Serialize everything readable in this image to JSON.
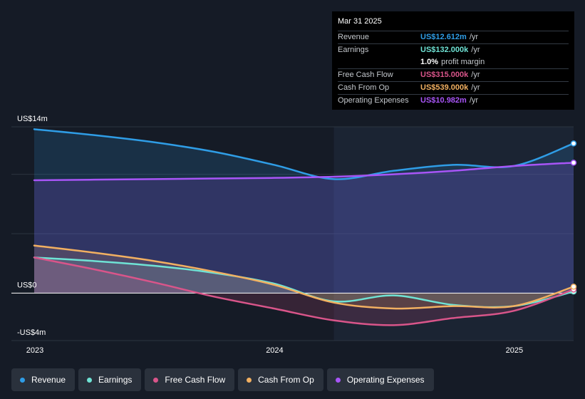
{
  "tooltip": {
    "date": "Mar 31 2025",
    "rows": [
      {
        "label": "Revenue",
        "value": "US$12.612m",
        "unit": "/yr",
        "color": "#2f9de6"
      },
      {
        "label": "Earnings",
        "value": "US$132.000k",
        "unit": "/yr",
        "color": "#6fe3d5"
      },
      {
        "label": "",
        "value": "1.0%",
        "unit": "profit margin",
        "color": "#ffffff"
      },
      {
        "label": "Free Cash Flow",
        "value": "US$315.000k",
        "unit": "/yr",
        "color": "#d9558a"
      },
      {
        "label": "Cash From Op",
        "value": "US$539.000k",
        "unit": "/yr",
        "color": "#f2b061"
      },
      {
        "label": "Operating Expenses",
        "value": "US$10.982m",
        "unit": "/yr",
        "color": "#a855f7"
      }
    ]
  },
  "legend": [
    {
      "label": "Revenue",
      "color": "#2f9de6"
    },
    {
      "label": "Earnings",
      "color": "#6fe3d5"
    },
    {
      "label": "Free Cash Flow",
      "color": "#d9558a"
    },
    {
      "label": "Cash From Op",
      "color": "#f2b061"
    },
    {
      "label": "Operating Expenses",
      "color": "#a855f7"
    }
  ],
  "chart_data": {
    "type": "area",
    "y_axis_labels": [
      {
        "label": "US$14m",
        "value": 14
      },
      {
        "label": "US$0",
        "value": 0
      },
      {
        "label": "-US$4m",
        "value": -4
      }
    ],
    "ylim": [
      -4,
      14
    ],
    "x_axis_labels": [
      {
        "label": "2023",
        "value": 2023.0
      },
      {
        "label": "2024",
        "value": 2024.0
      },
      {
        "label": "2025",
        "value": 2025.0
      }
    ],
    "xlim": [
      2023.0,
      2025.25
    ],
    "forecast_start": 2024.25,
    "series": [
      {
        "name": "Revenue",
        "color": "#2f9de6",
        "x": [
          2023.0,
          2023.25,
          2023.5,
          2023.75,
          2024.0,
          2024.25,
          2024.5,
          2024.75,
          2025.0,
          2025.25
        ],
        "y": [
          13.8,
          13.3,
          12.7,
          11.9,
          10.8,
          9.6,
          10.3,
          10.8,
          10.7,
          12.6
        ]
      },
      {
        "name": "Earnings",
        "color": "#6fe3d5",
        "x": [
          2023.0,
          2023.25,
          2023.5,
          2023.75,
          2024.0,
          2024.25,
          2024.5,
          2024.75,
          2025.0,
          2025.25
        ],
        "y": [
          3.0,
          2.7,
          2.3,
          1.7,
          0.8,
          -0.7,
          -0.2,
          -1.0,
          -1.1,
          0.13
        ]
      },
      {
        "name": "Free Cash Flow",
        "color": "#d9558a",
        "x": [
          2023.0,
          2023.25,
          2023.5,
          2023.75,
          2024.0,
          2024.25,
          2024.5,
          2024.75,
          2025.0,
          2025.25
        ],
        "y": [
          3.0,
          2.0,
          0.9,
          -0.3,
          -1.3,
          -2.3,
          -2.7,
          -2.1,
          -1.5,
          0.3
        ]
      },
      {
        "name": "Cash From Op",
        "color": "#f2b061",
        "x": [
          2023.0,
          2023.25,
          2023.5,
          2023.75,
          2024.0,
          2024.25,
          2024.5,
          2024.75,
          2025.0,
          2025.25
        ],
        "y": [
          4.0,
          3.4,
          2.7,
          1.8,
          0.7,
          -0.8,
          -1.3,
          -1.1,
          -1.1,
          0.54
        ]
      },
      {
        "name": "Operating Expenses",
        "color": "#a855f7",
        "x": [
          2023.0,
          2023.25,
          2023.5,
          2023.75,
          2024.0,
          2024.25,
          2024.5,
          2024.75,
          2025.0,
          2025.25
        ],
        "y": [
          9.5,
          9.55,
          9.6,
          9.65,
          9.7,
          9.8,
          10.0,
          10.3,
          10.7,
          10.98
        ]
      }
    ]
  }
}
